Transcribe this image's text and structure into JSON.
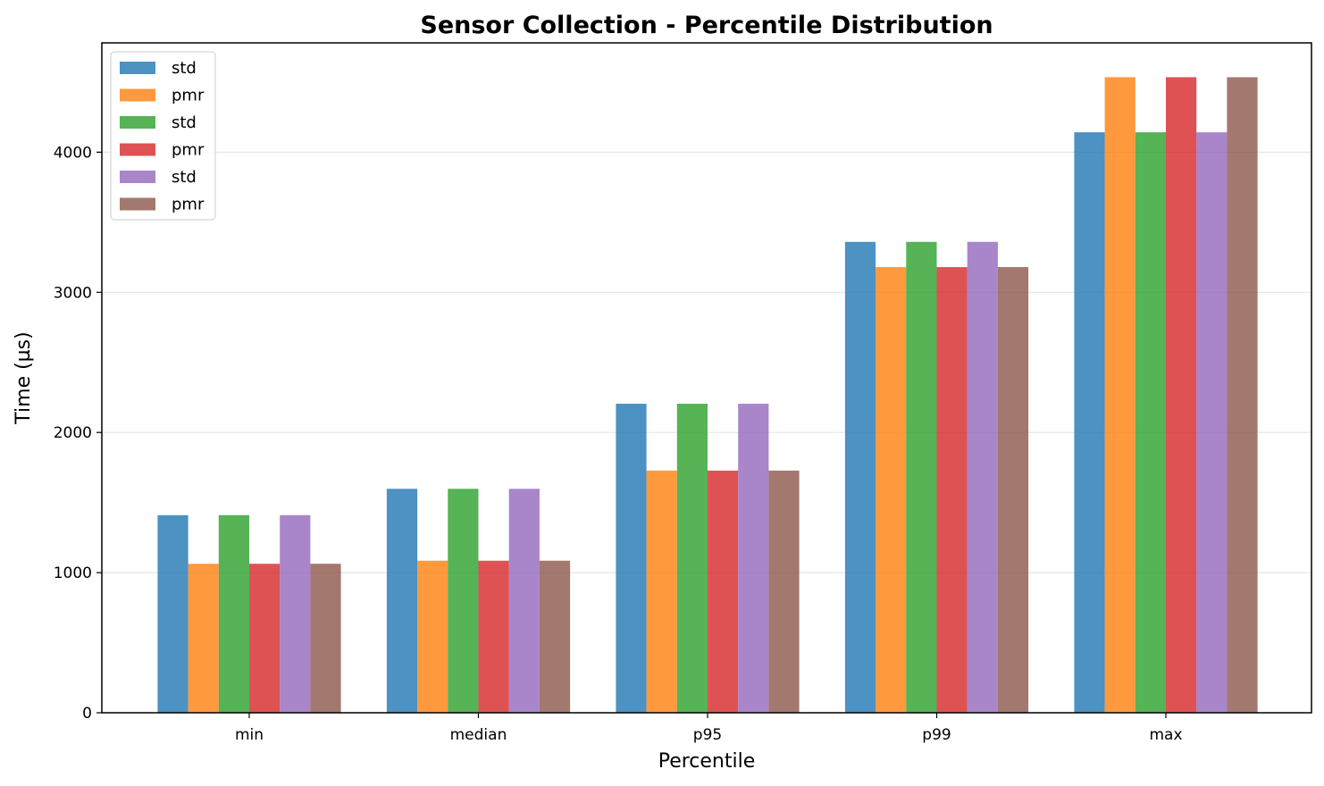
{
  "chart_data": {
    "type": "bar",
    "title": "Sensor Collection - Percentile Distribution",
    "xlabel": "Percentile",
    "ylabel": "Time (µs)",
    "categories": [
      "min",
      "median",
      "p95",
      "p99",
      "max"
    ],
    "ylim": [
      0,
      4780
    ],
    "yticks": [
      0,
      1000,
      2000,
      3000,
      4000
    ],
    "grid": "horizontal",
    "legend_position": "top-left",
    "series": [
      {
        "name": "std",
        "color": "#1f77b4",
        "values": [
          1410,
          1598,
          2205,
          3360,
          4142
        ]
      },
      {
        "name": "pmr",
        "color": "#ff7f0e",
        "values": [
          1063,
          1085,
          1728,
          3180,
          4535
        ]
      },
      {
        "name": "std",
        "color": "#2ca02c",
        "values": [
          1410,
          1598,
          2205,
          3360,
          4142
        ]
      },
      {
        "name": "pmr",
        "color": "#d62728",
        "values": [
          1063,
          1085,
          1728,
          3180,
          4535
        ]
      },
      {
        "name": "std",
        "color": "#9467bd",
        "values": [
          1410,
          1598,
          2205,
          3360,
          4142
        ]
      },
      {
        "name": "pmr",
        "color": "#8c564b",
        "values": [
          1063,
          1085,
          1728,
          3180,
          4535
        ]
      }
    ]
  }
}
